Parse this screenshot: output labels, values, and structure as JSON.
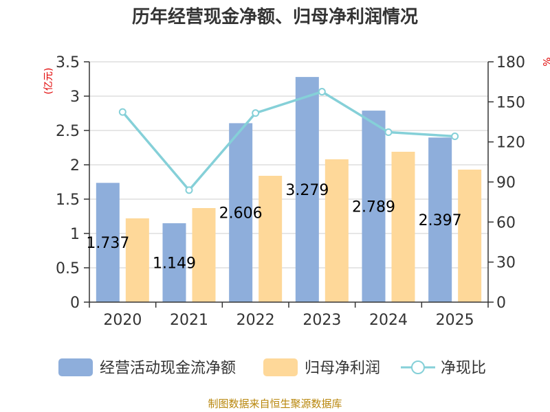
{
  "chart_data": {
    "type": "bar",
    "title": "历年经营现金净额、归母净利润情况",
    "categories": [
      "2020",
      "2021",
      "2022",
      "2023",
      "2024",
      "2025"
    ],
    "series": [
      {
        "name": "经营活动现金流净额",
        "kind": "bar",
        "axis": "left",
        "color": "#8eaedb",
        "values": [
          1.737,
          1.149,
          2.606,
          3.279,
          2.789,
          2.397
        ],
        "labels": [
          "1.737",
          "1.149",
          "2.606",
          "3.279",
          "2.789",
          "2.397"
        ]
      },
      {
        "name": "归母净利润",
        "kind": "bar",
        "axis": "left",
        "color": "#fed899",
        "values": [
          1.22,
          1.37,
          1.84,
          2.08,
          2.19,
          1.93
        ]
      },
      {
        "name": "净现比",
        "kind": "line",
        "axis": "right",
        "color": "#85d0d8",
        "values": [
          142.4,
          83.9,
          141.6,
          157.6,
          127.3,
          124.2
        ]
      }
    ],
    "y_left": {
      "unit": "(亿元)",
      "min": 0,
      "max": 3.5,
      "ticks": [
        "0",
        "0.5",
        "1",
        "1.5",
        "2",
        "2.5",
        "3",
        "3.5"
      ]
    },
    "y_right": {
      "unit": "%",
      "min": 0,
      "max": 180,
      "ticks": [
        "0",
        "30",
        "60",
        "90",
        "120",
        "150",
        "180"
      ]
    },
    "grid": true,
    "legend_position": "bottom",
    "source": "制图数据来自恒生聚源数据库"
  }
}
